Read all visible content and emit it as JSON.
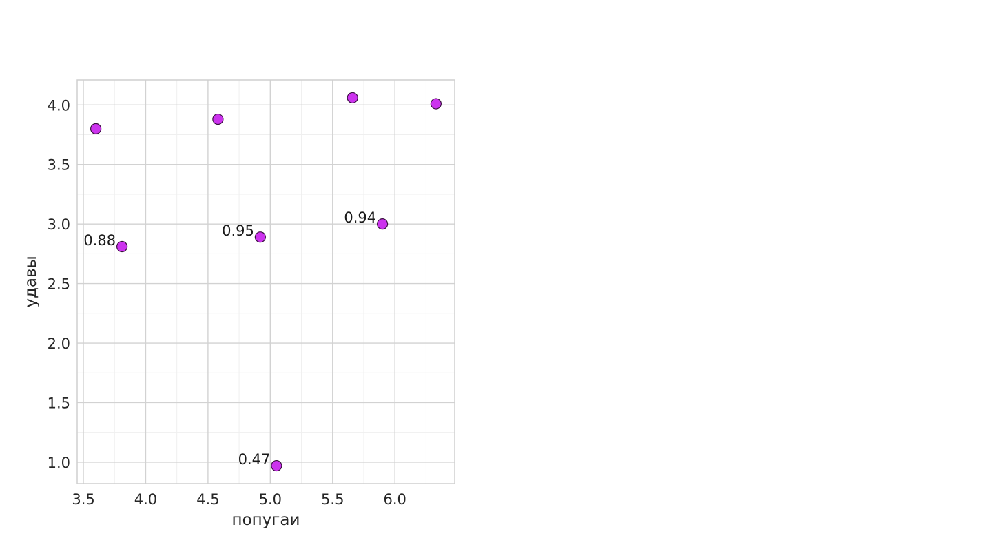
{
  "chart_data": {
    "type": "scatter",
    "title": "",
    "xlabel": "попугаи",
    "ylabel": "удавы",
    "xlim": [
      3.45,
      6.48
    ],
    "ylim": [
      0.82,
      4.21
    ],
    "xticks": [
      "3.5",
      "4.0",
      "4.5",
      "5.0",
      "5.5",
      "6.0"
    ],
    "yticks": [
      "1.0",
      "1.5",
      "2.0",
      "2.5",
      "3.0",
      "3.5",
      "4.0"
    ],
    "grid": true,
    "legend": "none",
    "point_color": "#cc33ee",
    "point_edge_color": "#3a1040",
    "points": [
      {
        "x": 3.6,
        "y": 3.8,
        "label": ""
      },
      {
        "x": 3.81,
        "y": 2.81,
        "label": "0.88"
      },
      {
        "x": 4.58,
        "y": 3.88,
        "label": ""
      },
      {
        "x": 4.92,
        "y": 2.89,
        "label": "0.95"
      },
      {
        "x": 5.05,
        "y": 0.97,
        "label": "0.47"
      },
      {
        "x": 5.66,
        "y": 4.06,
        "label": ""
      },
      {
        "x": 5.9,
        "y": 3.0,
        "label": "0.94"
      },
      {
        "x": 6.33,
        "y": 4.01,
        "label": ""
      }
    ]
  }
}
